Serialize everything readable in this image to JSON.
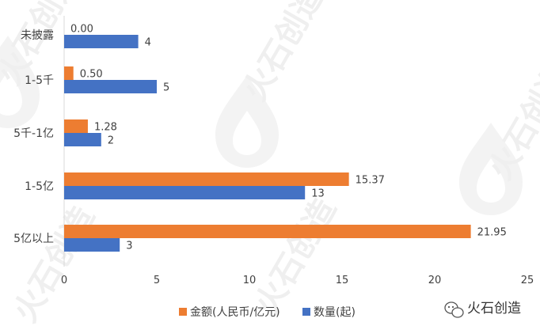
{
  "chart_data": {
    "type": "bar",
    "orientation": "horizontal",
    "categories": [
      "未披露",
      "1-5千",
      "5千-1亿",
      "1-5亿",
      "5亿以上"
    ],
    "series": [
      {
        "name": "金额(人民币/亿元)",
        "values": [
          0.0,
          0.5,
          1.28,
          15.37,
          21.95
        ],
        "labels": [
          "0.00",
          "0.50",
          "1.28",
          "15.37",
          "21.95"
        ],
        "color": "#ED7D31"
      },
      {
        "name": "数量(起)",
        "values": [
          4,
          5,
          2,
          13,
          3
        ],
        "labels": [
          "4",
          "5",
          "2",
          "13",
          "3"
        ],
        "color": "#4472C4"
      }
    ],
    "xticks": [
      "0",
      "5",
      "10",
      "15",
      "20",
      "25"
    ],
    "xlim": [
      0,
      25
    ],
    "grid": false,
    "legend_position": "bottom"
  },
  "branding": {
    "watermark_text": "火石创造",
    "logo_text": "火石创造",
    "logo_icon": "wechat-icon"
  }
}
